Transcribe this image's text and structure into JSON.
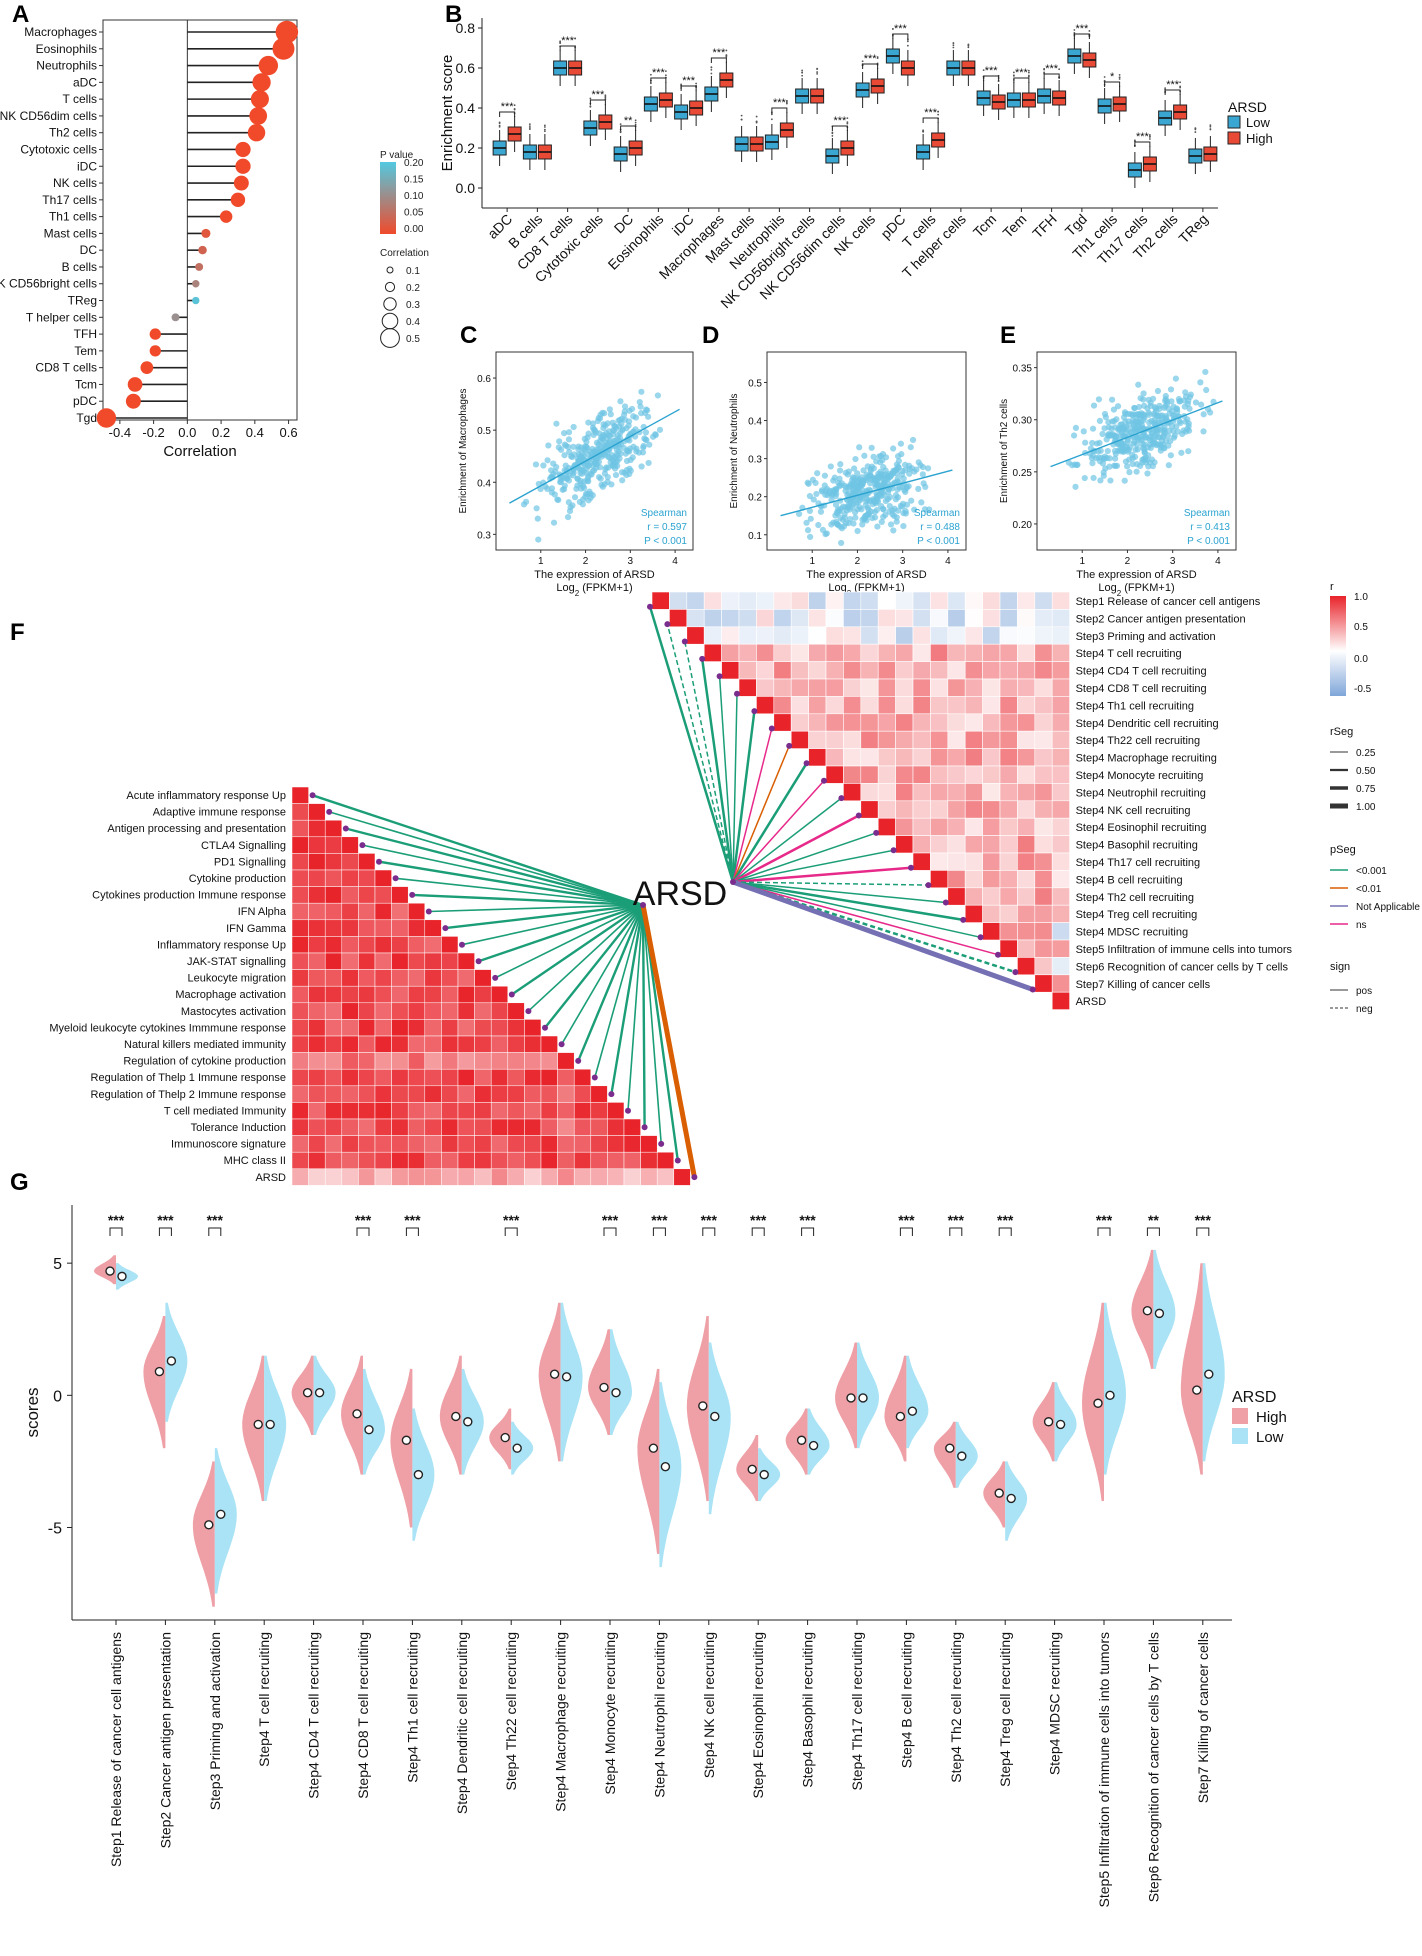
{
  "panel_letters": {
    "A": "A",
    "B": "B",
    "C": "C",
    "D": "D",
    "E": "E",
    "F": "F",
    "G": "G"
  },
  "colors": {
    "red": "#E8533A",
    "blue": "#38A9D9",
    "high_box": "#E84A35",
    "low_box": "#3AA7D3",
    "lightblue": "#9ED9EC",
    "pink": "#E89098",
    "green": "#1B9E77",
    "orange": "#D95F02",
    "purple": "#7570B3",
    "magenta": "#E7298A"
  },
  "chart_data": [
    {
      "id": "A",
      "type": "lollipop",
      "xlabel": "Correlation",
      "xlim": [
        -0.5,
        0.65
      ],
      "xticks": [
        "-0.4",
        "-0.2",
        "0.0",
        "0.2",
        "0.4",
        "0.6"
      ],
      "categories": [
        "Macrophages",
        "Eosinophils",
        "Neutrophils",
        "aDC",
        "T cells",
        "NK CD56dim cells",
        "Th2 cells",
        "Cytotoxic cells",
        "iDC",
        "NK cells",
        "Th17 cells",
        "Th1 cells",
        "Mast cells",
        "DC",
        "B cells",
        "NK CD56bright cells",
        "TReg",
        "T helper cells",
        "TFH",
        "Tem",
        "CD8 T cells",
        "Tcm",
        "pDC",
        "Tgd"
      ],
      "values": [
        0.59,
        0.57,
        0.48,
        0.44,
        0.43,
        0.42,
        0.41,
        0.33,
        0.33,
        0.32,
        0.3,
        0.23,
        0.11,
        0.09,
        0.07,
        0.05,
        0.05,
        -0.07,
        -0.19,
        -0.19,
        -0.24,
        -0.31,
        -0.32,
        -0.48
      ],
      "pvalues": [
        0,
        0,
        0,
        0,
        0,
        0,
        0,
        0,
        0,
        0,
        0,
        0,
        0.02,
        0.04,
        0.06,
        0.09,
        0.19,
        0.11,
        0,
        0,
        0,
        0,
        0,
        0
      ],
      "legend_p_title": "P value",
      "legend_p_ticks": [
        "0.20",
        "0.15",
        "0.10",
        "0.05",
        "0.00"
      ],
      "legend_size_title": "Correlation",
      "legend_size_ticks": [
        "0.1",
        "0.2",
        "0.3",
        "0.4",
        "0.5"
      ]
    },
    {
      "id": "B",
      "type": "boxplot",
      "ylabel": "Enrichment score",
      "ylim": [
        -0.1,
        0.85
      ],
      "yticks": [
        "0.0",
        "0.2",
        "0.4",
        "0.6",
        "0.8"
      ],
      "legend_title": "ARSD",
      "legend_labels": [
        "Low",
        "High"
      ],
      "categories": [
        "aDC",
        "B cells",
        "CD8 T cells",
        "Cytotoxic cells",
        "DC",
        "Eosinophils",
        "iDC",
        "Macrophages",
        "Mast cells",
        "Neutrophils",
        "NK CD56bright cells",
        "NK CD56dim cells",
        "NK cells",
        "pDC",
        "T cells",
        "T helper cells",
        "Tcm",
        "Tem",
        "TFH",
        "Tgd",
        "Th1 cells",
        "Th17 cells",
        "Th2 cells",
        "TReg"
      ],
      "low_median": [
        0.2,
        0.18,
        0.6,
        0.3,
        0.17,
        0.42,
        0.38,
        0.47,
        0.22,
        0.23,
        0.46,
        0.16,
        0.49,
        0.66,
        0.18,
        0.6,
        0.45,
        0.44,
        0.46,
        0.66,
        0.41,
        0.09,
        0.35,
        0.16
      ],
      "high_median": [
        0.27,
        0.18,
        0.6,
        0.33,
        0.2,
        0.44,
        0.4,
        0.54,
        0.22,
        0.29,
        0.46,
        0.2,
        0.51,
        0.6,
        0.24,
        0.6,
        0.43,
        0.44,
        0.45,
        0.64,
        0.42,
        0.12,
        0.38,
        0.17
      ],
      "significance": [
        "***",
        "",
        "***",
        "***",
        "**",
        "***",
        "***",
        "***",
        "",
        "***",
        "",
        "***",
        "***",
        "***",
        "***",
        "",
        "***",
        "***",
        "***",
        "***",
        "*",
        "***",
        "***",
        ""
      ]
    },
    {
      "id": "C",
      "type": "scatter",
      "xlabel": "The expression of ARSD",
      "xlabel2": "Log",
      "xlabel2_sub": "2",
      "xlabel2_suffix": " (FPKM+1)",
      "ylabel": "Enrichment of Macrophages",
      "xlim": [
        0,
        4.4
      ],
      "ylim": [
        0.27,
        0.65
      ],
      "xticks": [
        "1",
        "2",
        "3",
        "4"
      ],
      "yticks": [
        "0.3",
        "0.4",
        "0.5",
        "0.6"
      ],
      "stat_method": "Spearman",
      "r_text": "r = 0.597",
      "p_text": "P < 0.001",
      "r": 0.597,
      "fit": [
        [
          0.3,
          0.36
        ],
        [
          4.1,
          0.54
        ]
      ]
    },
    {
      "id": "D",
      "type": "scatter",
      "xlabel": "The expression of ARSD",
      "xlabel2": "Log",
      "xlabel2_sub": "2",
      "xlabel2_suffix": " (FPKM+1)",
      "ylabel": "Enrichment of Neutrophils",
      "xlim": [
        0,
        4.4
      ],
      "ylim": [
        0.06,
        0.58
      ],
      "xticks": [
        "1",
        "2",
        "3",
        "4"
      ],
      "yticks": [
        "0.1",
        "0.2",
        "0.3",
        "0.4",
        "0.5"
      ],
      "stat_method": "Spearman",
      "r_text": "r = 0.488",
      "p_text": "P < 0.001",
      "r": 0.488,
      "fit": [
        [
          0.3,
          0.15
        ],
        [
          4.1,
          0.27
        ]
      ]
    },
    {
      "id": "E",
      "type": "scatter",
      "xlabel": "The expression of ARSD",
      "xlabel2": "Log",
      "xlabel2_sub": "2",
      "xlabel2_suffix": " (FPKM+1)",
      "ylabel": "Enrichment of Th2 cells",
      "xlim": [
        0,
        4.4
      ],
      "ylim": [
        0.175,
        0.365
      ],
      "xticks": [
        "1",
        "2",
        "3",
        "4"
      ],
      "yticks": [
        "0.20",
        "0.25",
        "0.30",
        "0.35"
      ],
      "stat_method": "Spearman",
      "r_text": "r = 0.413",
      "p_text": "P < 0.001",
      "r": 0.413,
      "fit": [
        [
          0.3,
          0.255
        ],
        [
          4.1,
          0.318
        ]
      ]
    },
    {
      "id": "F_left",
      "type": "heatmap",
      "center_label": "ARSD",
      "rows": [
        "Acute inflammatory response Up",
        "Adaptive immune response",
        "Antigen processing and  presentation",
        "CTLA4 Signalling",
        "PD1 Signalling",
        "Cytokine production",
        "Cytokines production Immune response",
        "IFN Alpha",
        "IFN Gamma",
        "Inflammatory response Up",
        "JAK-STAT signalling",
        "Leukocyte migration",
        "Macrophage activation",
        "Mastocytes activation",
        "Myeloid leukocyte cytokines Immmune response",
        "Natural killers mediated immunity",
        "Regulation of cytokine production",
        "Regulation of Thelp 1 Immune response",
        "Regulation of Thelp 2 Immune response",
        "T cell mediated Immunity",
        "Tolerance Induction",
        "Immunoscore signature",
        "MHC class II",
        "ARSD"
      ]
    },
    {
      "id": "F_right",
      "type": "heatmap",
      "rows": [
        "Step1 Release of cancer cell antigens",
        "Step2 Cancer antigen presentation",
        "Step3 Priming and activation",
        "Step4 T cell recruiting",
        "Step4 CD4 T cell recruiting",
        "Step4 CD8 T cell recruiting",
        "Step4 Th1 cell recruiting",
        "Step4 Dendritic cell recruiting",
        "Step4 Th22 cell recruiting",
        "Step4 Macrophage recruiting",
        "Step4 Monocyte recruiting",
        "Step4 Neutrophil recruiting",
        "Step4 NK cell recruiting",
        "Step4 Eosinophil recruiting",
        "Step4 Basophil recruiting",
        "Step4 Th17 cell recruiting",
        "Step4 B cell recruiting",
        "Step4 Th2 cell recruiting",
        "Step4 Treg cell recruiting",
        "Step4 MDSC recruiting",
        "Step5 Infiltration of immune cells into tumors",
        "Step6 Recognition of cancer cells by T cells",
        "Step7 Killing of cancer cells",
        "ARSD"
      ],
      "arsd_corr": [
        0.15,
        -0.12,
        -0.08,
        0.35,
        0.45,
        0.4,
        0.42,
        0.38,
        0.3,
        0.35,
        0.28,
        0.25,
        0.4,
        0.2,
        0.25,
        0.15,
        0.1,
        0.3,
        0.35,
        -0.2,
        0.45,
        -0.1,
        0.5,
        1.0
      ],
      "legend_r_title": "r",
      "legend_r_ticks": [
        "1.0",
        "0.5",
        "0.0",
        "-0.5"
      ],
      "legend_rseg_title": "rSeg",
      "legend_rseg_ticks": [
        "0.25",
        "0.50",
        "0.75",
        "1.00"
      ],
      "legend_pseg_title": "pSeg",
      "legend_pseg_items": [
        "<0.001",
        "<0.01",
        "Not Applicable",
        "ns"
      ],
      "legend_sign_title": "sign",
      "legend_sign_items": [
        "pos",
        "neg"
      ]
    },
    {
      "id": "G",
      "type": "split_violin",
      "ylabel": "scores",
      "ylim": [
        -8.5,
        7.2
      ],
      "yticks": [
        "5",
        "0",
        "-5"
      ],
      "legend_title": "ARSD",
      "legend_labels": [
        "High",
        "Low"
      ],
      "categories": [
        "Step1 Release of cancer cell antigens",
        "Step2 Cancer antigen presentation",
        "Step3 Priming and activation",
        "Step4 T cell recruiting",
        "Step4 CD4 T cell recruiting",
        "Step4 CD8 T cell recruiting",
        "Step4 Th1 cell recruiting",
        "Step4 Dendritic cell recruiting",
        "Step4 Th22 cell recruiting",
        "Step4 Macrophage recruiting",
        "Step4 Monocyte recruiting",
        "Step4 Neutrophil recruiting",
        "Step4 NK cell recruiting",
        "Step4 Eosinophil recruiting",
        "Step4 Basophil recruiting",
        "Step4 Th17 cell recruiting",
        "Step4 B cell recruiting",
        "Step4 Th2 cell recruiting",
        "Step4 Treg cell recruiting",
        "Step4 MDSC recruiting",
        "Step5 Infiltration of immune cells into tumors",
        "Step6 Recognition of cancer cells by T cells",
        "Step7 Killing of cancer cells"
      ],
      "high_median": [
        4.7,
        0.9,
        -4.9,
        -1.1,
        0.1,
        -0.7,
        -1.7,
        -0.8,
        -1.6,
        0.8,
        0.3,
        -2.0,
        -0.4,
        -2.8,
        -1.7,
        -0.1,
        -0.8,
        -2.0,
        -3.7,
        -1.0,
        -0.3,
        3.2,
        0.2
      ],
      "low_median": [
        4.5,
        1.3,
        -4.5,
        -1.1,
        0.1,
        -1.3,
        -3.0,
        -1.0,
        -2.0,
        0.7,
        0.1,
        -2.7,
        -0.8,
        -3.0,
        -1.9,
        -0.1,
        -0.6,
        -2.3,
        -3.9,
        -1.1,
        0.0,
        3.1,
        0.8
      ],
      "high_range": [
        [
          4.2,
          5.3
        ],
        [
          -2.0,
          3.0
        ],
        [
          -8.0,
          -2.5
        ],
        [
          -4.0,
          1.5
        ],
        [
          -1.5,
          1.5
        ],
        [
          -3.0,
          1.5
        ],
        [
          -5.0,
          1.0
        ],
        [
          -3.0,
          1.5
        ],
        [
          -2.8,
          -0.5
        ],
        [
          -2.5,
          3.5
        ],
        [
          -1.5,
          2.5
        ],
        [
          -6.0,
          1.0
        ],
        [
          -4.0,
          3.0
        ],
        [
          -4.0,
          -1.5
        ],
        [
          -3.0,
          -0.5
        ],
        [
          -2.0,
          2.0
        ],
        [
          -2.5,
          1.5
        ],
        [
          -3.5,
          -1.0
        ],
        [
          -5.0,
          -2.5
        ],
        [
          -2.5,
          0.5
        ],
        [
          -4.0,
          3.5
        ],
        [
          1.0,
          5.5
        ],
        [
          -3.0,
          5.0
        ]
      ],
      "low_range": [
        [
          4.0,
          5.0
        ],
        [
          -1.0,
          3.5
        ],
        [
          -7.5,
          -2.0
        ],
        [
          -4.0,
          1.5
        ],
        [
          -1.5,
          1.5
        ],
        [
          -3.0,
          1.0
        ],
        [
          -5.5,
          -0.5
        ],
        [
          -3.0,
          1.0
        ],
        [
          -3.0,
          -1.0
        ],
        [
          -2.5,
          3.5
        ],
        [
          -1.5,
          2.5
        ],
        [
          -6.5,
          0.5
        ],
        [
          -4.5,
          2.0
        ],
        [
          -4.0,
          -2.0
        ],
        [
          -3.0,
          -0.5
        ],
        [
          -2.0,
          2.0
        ],
        [
          -2.0,
          1.5
        ],
        [
          -3.5,
          -1.0
        ],
        [
          -5.5,
          -2.5
        ],
        [
          -2.5,
          0.5
        ],
        [
          -3.0,
          3.5
        ],
        [
          1.0,
          5.5
        ],
        [
          -2.5,
          5.0
        ]
      ],
      "significance": [
        "***",
        "***",
        "***",
        "",
        "",
        "***",
        "***",
        "",
        "***",
        "",
        "***",
        "***",
        "***",
        "***",
        "***",
        "",
        "***",
        "***",
        "***",
        "",
        "***",
        "**",
        "***"
      ]
    }
  ]
}
